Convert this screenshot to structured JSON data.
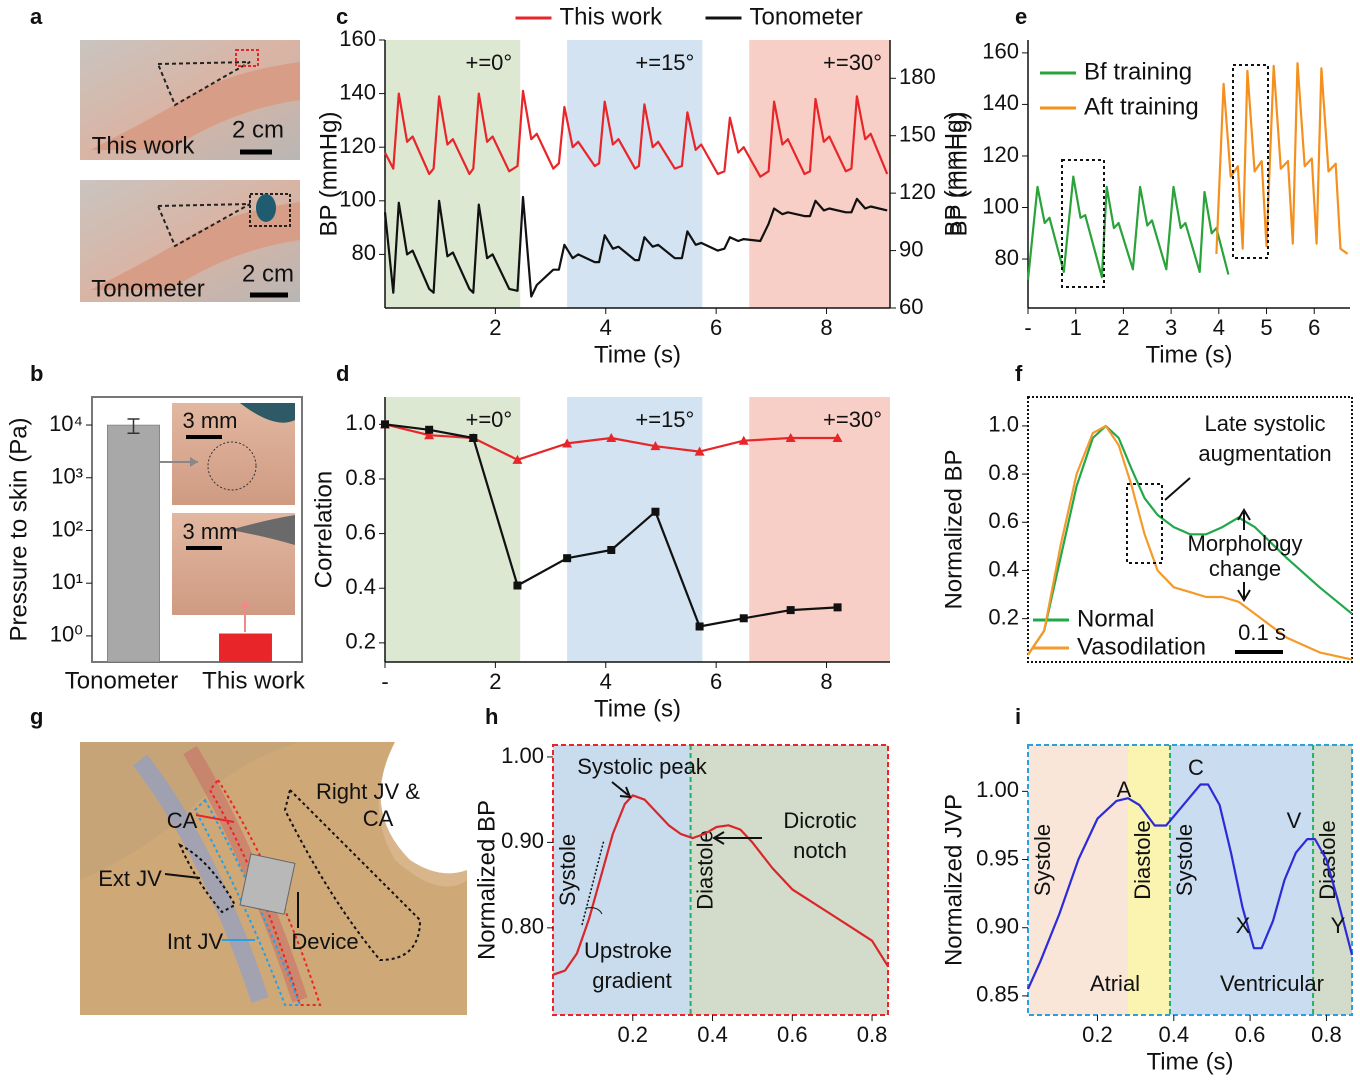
{
  "chart_data": [
    {
      "panel": "c",
      "type": "line",
      "xlabel": "Time (s)",
      "ylabel": "BP (mmHg)",
      "y2label": "BP (mmHg)",
      "y_color": "#e8262a",
      "xlim": [
        0,
        9.15
      ],
      "xticks": [
        2,
        4,
        6,
        8
      ],
      "ylim": [
        60,
        160
      ],
      "yticks": [
        80,
        100,
        120,
        140,
        160
      ],
      "y2lim": [
        60,
        200
      ],
      "y2ticks": [
        60,
        90,
        120,
        150,
        180
      ],
      "legend": "top",
      "regions": [
        {
          "start": 0,
          "end": 2.45,
          "color": "#dde8d2",
          "label": "+=0°"
        },
        {
          "start": 3.3,
          "end": 5.75,
          "color": "#d3e3f2",
          "label": "+=15°"
        },
        {
          "start": 6.6,
          "end": 9.15,
          "color": "#f8cfc6",
          "label": "+=30°"
        }
      ],
      "series": [
        {
          "name": "This work",
          "color": "#e8262a",
          "x": [
            0,
            0.15,
            0.25,
            0.4,
            0.5,
            0.8,
            0.88,
            0.98,
            1.13,
            1.23,
            1.53,
            1.6,
            1.7,
            1.85,
            1.95,
            2.25,
            2.4,
            2.5,
            2.65,
            2.75,
            3.05,
            3.15,
            3.25,
            3.4,
            3.5,
            3.8,
            3.88,
            3.98,
            4.13,
            4.23,
            4.53,
            4.6,
            4.7,
            4.85,
            4.95,
            5.25,
            5.38,
            5.48,
            5.63,
            5.73,
            6.03,
            6.15,
            6.25,
            6.4,
            6.5,
            6.8,
            6.95,
            7.05,
            7.2,
            7.3,
            7.6,
            7.7,
            7.8,
            7.95,
            8.05,
            8.35,
            8.45,
            8.55,
            8.7,
            8.8,
            9.1
          ],
          "values": [
            118,
            112,
            140,
            122,
            124,
            110,
            112,
            139,
            121,
            123,
            110,
            112,
            140,
            122,
            124,
            111,
            113,
            141,
            123,
            125,
            112,
            114,
            135,
            120,
            122,
            113,
            114,
            137,
            121,
            123,
            112,
            113,
            136,
            120,
            122,
            112,
            113,
            133,
            119,
            121,
            110,
            111,
            131,
            118,
            120,
            109,
            111,
            137,
            121,
            123,
            110,
            111,
            138,
            122,
            124,
            111,
            112,
            139,
            123,
            125,
            110
          ]
        },
        {
          "name": "Tonometer",
          "color": "#111111",
          "axis": "y2",
          "x": [
            0,
            0.15,
            0.25,
            0.4,
            0.5,
            0.8,
            0.88,
            0.98,
            1.13,
            1.23,
            1.53,
            1.6,
            1.7,
            1.85,
            1.95,
            2.25,
            2.4,
            2.5,
            2.65,
            2.75,
            3.05,
            3.15,
            3.25,
            3.4,
            3.5,
            3.8,
            3.88,
            3.98,
            4.13,
            4.23,
            4.53,
            4.6,
            4.7,
            4.85,
            4.95,
            5.25,
            5.38,
            5.48,
            5.63,
            5.73,
            6.03,
            6.15,
            6.25,
            6.4,
            6.5,
            6.8,
            6.95,
            7.05,
            7.2,
            7.3,
            7.6,
            7.7,
            7.8,
            7.95,
            8.05,
            8.35,
            8.45,
            8.55,
            8.7,
            8.8,
            9.1
          ],
          "values": [
            110,
            68,
            115,
            88,
            90,
            70,
            68,
            116,
            87,
            89,
            70,
            68,
            114,
            86,
            88,
            70,
            69,
            118,
            66,
            72,
            80,
            80,
            93,
            86,
            88,
            84,
            84,
            98,
            91,
            92,
            85,
            85,
            97,
            92,
            93,
            86,
            86,
            100,
            93,
            94,
            90,
            91,
            97,
            95,
            96,
            95,
            104,
            112,
            109,
            110,
            108,
            108,
            116,
            111,
            112,
            110,
            110,
            117,
            112,
            113,
            111
          ]
        }
      ]
    },
    {
      "panel": "d",
      "type": "line",
      "xlabel": "Time (s)",
      "ylabel": "Correlation",
      "xlim": [
        0,
        9.15
      ],
      "xticks": [
        {
          "value": 0,
          "label": "-"
        },
        2,
        4,
        6,
        8
      ],
      "ylim": [
        0.13,
        1.1
      ],
      "yticks": [
        0.2,
        0.4,
        0.6,
        0.8,
        {
          "value": 1,
          "label": "1.0"
        }
      ],
      "regions": [
        {
          "start": 0,
          "end": 2.45,
          "color": "#dde8d2",
          "label": "+=0°"
        },
        {
          "start": 3.3,
          "end": 5.75,
          "color": "#d3e3f2",
          "label": "+=15°"
        },
        {
          "start": 6.6,
          "end": 9.15,
          "color": "#f8cfc6",
          "label": "+=30°"
        }
      ],
      "series": [
        {
          "color": "#e8262a",
          "marker": "triangle",
          "x": [
            0,
            0.8,
            1.6,
            2.4,
            3.3,
            4.1,
            4.9,
            5.7,
            6.5,
            7.35,
            8.2
          ],
          "values": [
            1.0,
            0.96,
            0.95,
            0.87,
            0.93,
            0.95,
            0.92,
            0.9,
            0.94,
            0.95,
            0.95
          ]
        },
        {
          "color": "#111111",
          "marker": "square",
          "x": [
            0,
            0.8,
            1.6,
            2.4,
            3.3,
            4.1,
            4.9,
            5.7,
            6.5,
            7.35,
            8.2
          ],
          "values": [
            1.0,
            0.98,
            0.95,
            0.41,
            0.51,
            0.54,
            0.68,
            0.26,
            0.29,
            0.32,
            0.33
          ]
        }
      ]
    },
    {
      "panel": "e",
      "type": "line",
      "xlabel": "Time (s)",
      "ylabel": "BP (mmHg)",
      "xlim": [
        0,
        6.75
      ],
      "xticks": [
        {
          "value": 0,
          "label": "-"
        },
        1,
        2,
        3,
        4,
        5,
        6
      ],
      "ylim": [
        61,
        165
      ],
      "yticks": [
        80,
        100,
        120,
        140,
        160
      ],
      "legend": "upper left",
      "series": [
        {
          "name": "Bf training",
          "color": "#2aa33a",
          "x": [
            0,
            0.2,
            0.35,
            0.45,
            0.75,
            0.95,
            1.1,
            1.2,
            1.55,
            1.65,
            1.8,
            1.9,
            2.2,
            2.35,
            2.5,
            2.6,
            2.9,
            3.05,
            3.2,
            3.3,
            3.6,
            3.7,
            3.85,
            3.95,
            4.2
          ],
          "values": [
            72,
            108,
            94,
            96,
            75,
            112,
            96,
            97,
            73,
            108,
            92,
            94,
            76,
            108,
            93,
            95,
            76,
            108,
            92,
            94,
            75,
            106,
            90,
            92,
            74
          ]
        },
        {
          "name": "Aft training",
          "color": "#f5901e",
          "x": [
            3.95,
            4.1,
            4.25,
            4.4,
            4.5,
            4.6,
            4.75,
            4.9,
            5.0,
            5.15,
            5.3,
            5.45,
            5.55,
            5.65,
            5.8,
            5.95,
            6.05,
            6.15,
            6.3,
            6.45,
            6.55,
            6.7
          ],
          "values": [
            82,
            148,
            112,
            116,
            84,
            153,
            114,
            118,
            85,
            155,
            115,
            118,
            86,
            156,
            116,
            119,
            86,
            154,
            114,
            117,
            84,
            82
          ]
        }
      ]
    },
    {
      "panel": "f",
      "type": "line",
      "ylabel": "Normalized BP",
      "xlim": [
        0,
        1
      ],
      "ylim": [
        0.02,
        1.12
      ],
      "yticks": [
        0.2,
        0.4,
        0.6,
        0.8,
        {
          "value": 1,
          "label": "1.0"
        }
      ],
      "legend": "lower left",
      "annotations": [
        "Late systolic",
        "augmentation",
        "Morphology",
        "change",
        "0.1 s"
      ],
      "series": [
        {
          "name": "Normal",
          "color": "#22a84a",
          "x": [
            0,
            0.05,
            0.1,
            0.15,
            0.2,
            0.24,
            0.28,
            0.32,
            0.36,
            0.4,
            0.45,
            0.5,
            0.55,
            0.6,
            0.65,
            0.7,
            0.8,
            0.9,
            1.0
          ],
          "values": [
            0.05,
            0.15,
            0.45,
            0.75,
            0.95,
            1.0,
            0.95,
            0.82,
            0.7,
            0.63,
            0.58,
            0.55,
            0.55,
            0.58,
            0.62,
            0.58,
            0.45,
            0.33,
            0.22
          ]
        },
        {
          "name": "Vasodilation",
          "color": "#f59a2a",
          "x": [
            0,
            0.05,
            0.1,
            0.15,
            0.2,
            0.24,
            0.28,
            0.32,
            0.36,
            0.4,
            0.45,
            0.5,
            0.55,
            0.6,
            0.65,
            0.7,
            0.8,
            0.9,
            1.0
          ],
          "values": [
            0.05,
            0.15,
            0.5,
            0.8,
            0.97,
            1.0,
            0.92,
            0.75,
            0.55,
            0.4,
            0.33,
            0.31,
            0.29,
            0.29,
            0.27,
            0.22,
            0.12,
            0.06,
            0.03
          ]
        }
      ]
    },
    {
      "panel": "h",
      "type": "line",
      "ylabel": "Normalized BP",
      "xlim": [
        0,
        0.84
      ],
      "xticks": [
        0.2,
        0.4,
        0.6,
        0.8
      ],
      "ylim": [
        0.698,
        1.014
      ],
      "yticks": [
        {
          "value": 0.8,
          "label": "0.80"
        },
        {
          "value": 0.9,
          "label": "0.90"
        },
        {
          "value": 1,
          "label": "1.00"
        }
      ],
      "divider_color": "#22b35a",
      "regions": [
        {
          "start": 0,
          "end": 0.345,
          "color": "#c9dcee",
          "label": "Systole",
          "divider": true
        },
        {
          "start": 0.345,
          "end": 0.84,
          "color": "#d3dccb",
          "label": "Diastole"
        }
      ],
      "annotations": [
        "Systolic peak",
        "Dicrotic",
        "notch",
        "Upstroke",
        "gradient"
      ],
      "series": [
        {
          "color": "#d9262a",
          "x": [
            0,
            0.03,
            0.06,
            0.09,
            0.12,
            0.15,
            0.18,
            0.2,
            0.23,
            0.26,
            0.29,
            0.32,
            0.35,
            0.38,
            0.41,
            0.44,
            0.47,
            0.5,
            0.55,
            0.6,
            0.65,
            0.7,
            0.75,
            0.8,
            0.84
          ],
          "values": [
            0.745,
            0.75,
            0.77,
            0.81,
            0.86,
            0.91,
            0.945,
            0.955,
            0.95,
            0.935,
            0.92,
            0.91,
            0.905,
            0.91,
            0.918,
            0.92,
            0.915,
            0.9,
            0.87,
            0.845,
            0.83,
            0.815,
            0.8,
            0.785,
            0.755
          ]
        }
      ]
    },
    {
      "panel": "i",
      "type": "line",
      "xlabel": "Time (s)",
      "ylabel": "Normalized JVP",
      "xlim": [
        0.018,
        0.867
      ],
      "xticks": [
        0.2,
        0.4,
        0.6,
        0.8
      ],
      "ylim": [
        0.836,
        1.034
      ],
      "yticks": [
        0.85,
        {
          "value": 0.9,
          "label": "0.90"
        },
        0.95,
        {
          "value": 1,
          "label": "1.00"
        }
      ],
      "divider_color": "#22b35a",
      "regions": [
        {
          "start": 0.018,
          "end": 0.28,
          "color": "#f9e6d8",
          "label": "Systole"
        },
        {
          "start": 0.28,
          "end": 0.39,
          "color": "#fbf3b0",
          "label": "Diastole",
          "divider": true
        },
        {
          "start": 0.39,
          "end": 0.765,
          "color": "#c9dcf0",
          "label": "Systole",
          "divider": true
        },
        {
          "start": 0.765,
          "end": 0.867,
          "color": "#d3dccb",
          "label": "Diastole"
        }
      ],
      "annotations": [
        "A",
        "C",
        "X",
        "V",
        "Y",
        "Atrial",
        "Ventricular"
      ],
      "series": [
        {
          "color": "#2b2bd8",
          "x": [
            0.018,
            0.05,
            0.1,
            0.15,
            0.2,
            0.25,
            0.28,
            0.31,
            0.35,
            0.38,
            0.41,
            0.44,
            0.47,
            0.49,
            0.52,
            0.55,
            0.58,
            0.61,
            0.63,
            0.66,
            0.69,
            0.72,
            0.75,
            0.77,
            0.8,
            0.83,
            0.867
          ],
          "values": [
            0.855,
            0.875,
            0.91,
            0.95,
            0.98,
            0.993,
            0.995,
            0.99,
            0.975,
            0.975,
            0.985,
            0.995,
            1.005,
            1.005,
            0.99,
            0.955,
            0.915,
            0.885,
            0.885,
            0.905,
            0.935,
            0.955,
            0.965,
            0.965,
            0.95,
            0.92,
            0.88
          ]
        }
      ]
    },
    {
      "panel": "b",
      "type": "bar",
      "ylabel": "Pressure to skin (Pa)",
      "log_y": true,
      "categories": [
        "Tonometer",
        "This work"
      ],
      "category_colors": [
        "#111111",
        "#e8262a"
      ],
      "values": [
        10000,
        1.1
      ],
      "errors": [
        3000,
        null
      ],
      "colors": [
        "#a8a8a8",
        "#e8262a"
      ],
      "ylim": [
        0.32,
        34000
      ],
      "yticks": [
        {
          "value": 1,
          "label": "10⁰"
        },
        {
          "value": 10,
          "label": "10¹"
        },
        {
          "value": 100,
          "label": "10²"
        },
        {
          "value": 1000,
          "label": "10³"
        },
        {
          "value": 10000,
          "label": "10⁴"
        }
      ],
      "annotations": [
        "3 mm",
        "3 mm"
      ]
    }
  ],
  "figure_panels": [
    {
      "panel": "a",
      "labels": [
        "This work",
        "2 cm",
        "Tonometer",
        "2 cm"
      ]
    },
    {
      "panel": "g",
      "labels": [
        "Right JV &",
        "CA",
        "CA",
        "Ext JV",
        "Int JV",
        "Device"
      ]
    }
  ]
}
